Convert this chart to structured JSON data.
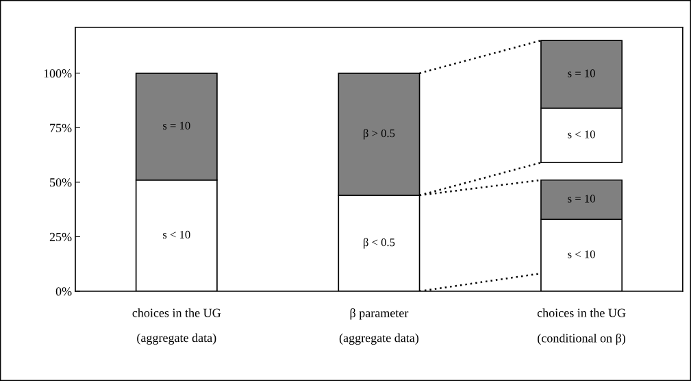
{
  "chart_data": {
    "type": "bar",
    "categories": [
      "choices in the UG\n(aggregate data)",
      "β parameter\n(aggregate data)",
      "choices in the UG\n(conditional on β)"
    ],
    "series": [
      {
        "name": "s < 10",
        "color": "#ffffff",
        "values": [
          51,
          null,
          33
        ],
        "base": [
          0,
          null,
          0
        ]
      },
      {
        "name": "s = 10",
        "color": "#808080",
        "values": [
          49,
          null,
          18
        ],
        "base": [
          51,
          null,
          33
        ]
      },
      {
        "name": "β < 0.5",
        "color": "#ffffff",
        "values": [
          null,
          44,
          null
        ],
        "base": [
          null,
          0,
          null
        ]
      },
      {
        "name": "β > 0.5",
        "color": "#808080",
        "values": [
          null,
          56,
          null
        ],
        "base": [
          null,
          44,
          null
        ]
      },
      {
        "name": "s < 10",
        "color": "#ffffff",
        "values": [
          null,
          null,
          25
        ],
        "base": [
          null,
          null,
          59
        ]
      },
      {
        "name": "s = 10",
        "color": "#808080",
        "values": [
          null,
          null,
          31
        ],
        "base": [
          null,
          null,
          84
        ]
      }
    ],
    "ylim": [
      0,
      121
    ],
    "yticks": [
      {
        "value": 0,
        "label": "0%"
      },
      {
        "value": 25,
        "label": "25%"
      },
      {
        "value": 50,
        "label": "50%"
      },
      {
        "value": 75,
        "label": "75%"
      },
      {
        "value": 100,
        "label": "100%"
      }
    ],
    "grid": false,
    "legend": false
  }
}
